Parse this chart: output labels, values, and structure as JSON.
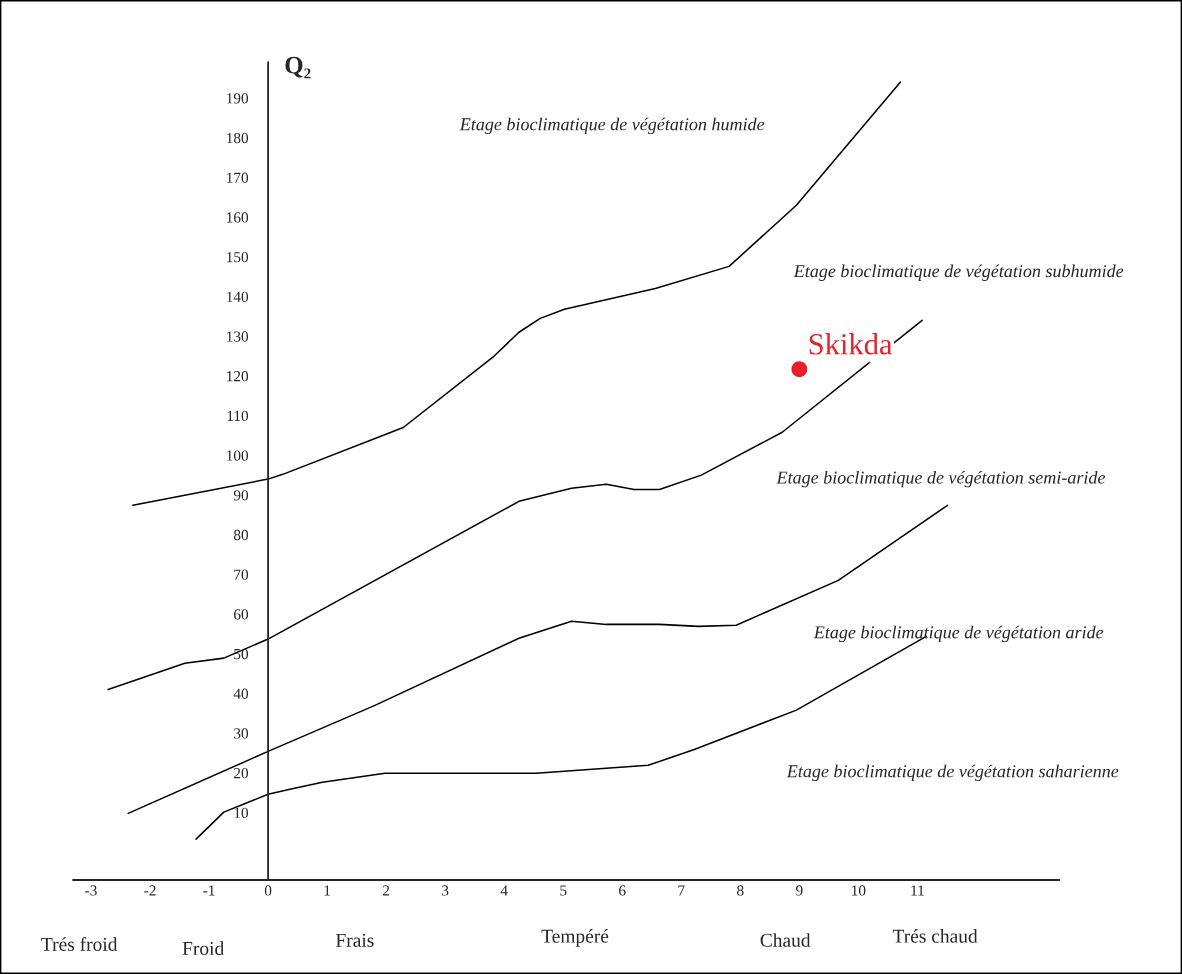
{
  "chart_data": {
    "type": "line",
    "ylabel": "Q₂",
    "xlim": [
      -3.3,
      13.4
    ],
    "ylim": [
      -7,
      199
    ],
    "xticks": [
      -3,
      -2,
      -1,
      0,
      1,
      2,
      3,
      4,
      5,
      6,
      7,
      8,
      9,
      10,
      11
    ],
    "yticks": [
      10,
      20,
      30,
      40,
      50,
      60,
      70,
      80,
      90,
      100,
      110,
      120,
      130,
      140,
      150,
      160,
      170,
      180,
      190
    ],
    "grid": false,
    "legend": false,
    "marker": "none",
    "line_style": "solid",
    "series": [
      {
        "color": "#000000",
        "x": [
          -2.29,
          0,
          0.25,
          2.29,
          3.83,
          4.25,
          4.61,
          5.02,
          6.56,
          7.81,
          8.95,
          10.71
        ],
        "values": [
          87.4,
          94,
          95.2,
          107,
          125,
          131,
          134.5,
          136.8,
          142,
          147.6,
          163,
          194
        ]
      },
      {
        "color": "#000000",
        "x": [
          -2.71,
          -1.41,
          -0.75,
          0,
          4.25,
          5.14,
          5.73,
          6.2,
          6.63,
          7.34,
          8.71,
          11.08
        ],
        "values": [
          41,
          47.6,
          48.9,
          53.7,
          88.4,
          91.7,
          92.7,
          91.4,
          91.4,
          95,
          105.8,
          134
        ]
      },
      {
        "color": "#000000",
        "x": [
          -2.37,
          0,
          1.81,
          4.25,
          5.14,
          5.73,
          6.63,
          7.29,
          7.93,
          9.66,
          11.51
        ],
        "values": [
          9.8,
          25.4,
          37,
          53.9,
          58.2,
          57.4,
          57.4,
          56.9,
          57.2,
          68.5,
          87.4
        ]
      },
      {
        "color": "#000000",
        "x": [
          -1.22,
          -0.75,
          0,
          0.39,
          0.92,
          1.98,
          4.54,
          6.44,
          7.22,
          8.95,
          11.15
        ],
        "values": [
          3.3,
          10.1,
          14.6,
          15.9,
          17.6,
          19.9,
          19.9,
          21.9,
          25.9,
          35.8,
          54.4
        ]
      },
      {
        "type": "scatter",
        "name": "Skikda",
        "color": "#e8202a",
        "marker": "circle",
        "x": [
          9.0
        ],
        "values": [
          121.7
        ]
      }
    ],
    "annotations": [
      "Etage bioclimatique de végétation humide",
      "Etage bioclimatique de végétation subhumide",
      "Etage bioclimatique de végétation semi-aride",
      "Etage bioclimatique de végétation aride",
      "Etage bioclimatique de végétation saharienne",
      "Trés froid",
      "Froid",
      "Frais",
      "Tempéré",
      "Chaud",
      "Trés chaud"
    ]
  }
}
